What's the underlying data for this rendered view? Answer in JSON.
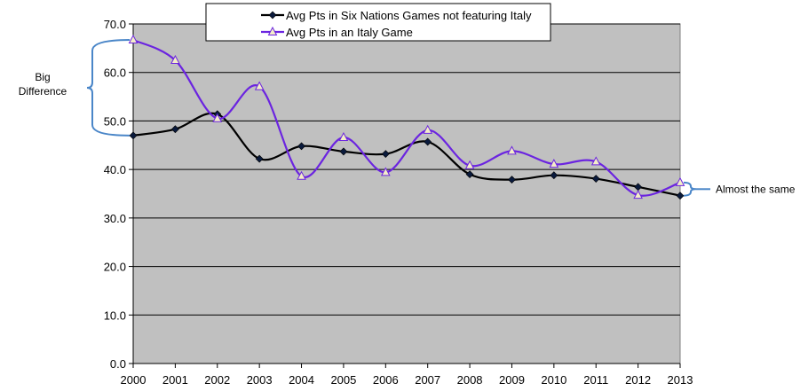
{
  "chart_data": {
    "type": "line",
    "title": "",
    "xlabel": "",
    "ylabel": "",
    "ylim": [
      0,
      70
    ],
    "yticks": [
      "0.0",
      "10.0",
      "20.0",
      "30.0",
      "40.0",
      "50.0",
      "60.0",
      "70.0"
    ],
    "categories": [
      "2000",
      "2001",
      "2002",
      "2003",
      "2004",
      "2005",
      "2006",
      "2007",
      "2008",
      "2009",
      "2010",
      "2011",
      "2012",
      "2013"
    ],
    "grid": true,
    "legend_position": "top-center",
    "series": [
      {
        "name": "Avg Pts in Six Nations Games not featuring Italy",
        "color": "#000000",
        "marker": "diamond",
        "values": [
          47.0,
          48.3,
          51.4,
          42.2,
          44.8,
          43.7,
          43.2,
          45.7,
          39.0,
          37.9,
          38.8,
          38.1,
          36.4,
          34.6
        ]
      },
      {
        "name": "Avg Pts in an Italy Game",
        "color": "#6B24E0",
        "marker": "triangle",
        "values": [
          66.7,
          62.5,
          50.5,
          57.1,
          38.6,
          46.6,
          39.4,
          48.1,
          40.8,
          43.8,
          41.1,
          41.6,
          34.7,
          37.3
        ]
      }
    ],
    "annotations": [
      {
        "text_lines": [
          "Big",
          "Difference"
        ],
        "bracket_from": 47.0,
        "bracket_to": 66.7,
        "at_category": "2000",
        "side": "left"
      },
      {
        "text_lines": [
          "Almost the same"
        ],
        "bracket_from": 34.6,
        "bracket_to": 37.3,
        "at_category": "2013",
        "side": "right"
      }
    ],
    "bracket_color": "#4A86C8"
  }
}
